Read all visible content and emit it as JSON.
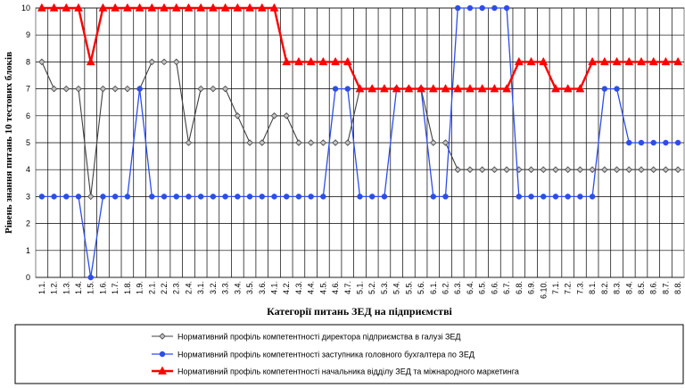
{
  "chart_data": {
    "type": "line",
    "xlabel": "Категорії питань ЗЕД на підприємстві",
    "ylabel": "Рівень знання питань 10 тестових блоків",
    "ylim": [
      0,
      10
    ],
    "yticks": [
      0,
      1,
      2,
      3,
      4,
      5,
      6,
      7,
      8,
      9,
      10
    ],
    "grid": true,
    "legend_position": "bottom",
    "categories": [
      "1.1.",
      "1.2.",
      "1.3.",
      "1.4.",
      "1.5.",
      "1.6.",
      "1.7.",
      "1.8.",
      "1.9.",
      "2.1.",
      "2.2.",
      "2.3.",
      "2.4.",
      "3.1.",
      "3.2.",
      "3.3.",
      "3.4.",
      "3.5.",
      "3.6.",
      "4.1.",
      "4.2.",
      "4.3.",
      "4.4.",
      "4.5.",
      "4.6.",
      "4.7.",
      "5.1.",
      "5.2.",
      "5.3.",
      "5.4.",
      "5.5.",
      "5.6.",
      "6.1.",
      "6.2.",
      "6.3.",
      "6.4.",
      "6.5.",
      "6.6.",
      "6.7.",
      "6.8.",
      "6.9.",
      "6.10.",
      "7.1.",
      "7.2.",
      "7.3.",
      "8.1.",
      "8.2.",
      "8.3.",
      "8.4.",
      "8.5.",
      "8.6.",
      "8.7.",
      "8.8."
    ],
    "series": [
      {
        "name": "Нормативний профіль компетентності директора підприємства в галузі ЗЕД",
        "color": "#404040",
        "marker": "diamond",
        "values": [
          8,
          7,
          7,
          7,
          3,
          7,
          7,
          7,
          7,
          8,
          8,
          8,
          5,
          7,
          7,
          7,
          6,
          5,
          5,
          6,
          6,
          5,
          5,
          5,
          5,
          5,
          7,
          7,
          7,
          7,
          7,
          7,
          5,
          5,
          4,
          4,
          4,
          4,
          4,
          4,
          4,
          4,
          4,
          4,
          4,
          4,
          4,
          4,
          4,
          4,
          4,
          4,
          4
        ]
      },
      {
        "name": "Нормативний профіль компетентності заступника головного бухгалтера по ЗЕД",
        "color": "#2e4de8",
        "marker": "circle",
        "values": [
          3,
          3,
          3,
          3,
          0,
          3,
          3,
          3,
          7,
          3,
          3,
          3,
          3,
          3,
          3,
          3,
          3,
          3,
          3,
          3,
          3,
          3,
          3,
          3,
          7,
          7,
          3,
          3,
          3,
          7,
          7,
          7,
          3,
          3,
          10,
          10,
          10,
          10,
          10,
          3,
          3,
          3,
          3,
          3,
          3,
          3,
          7,
          7,
          5,
          5,
          5,
          5,
          5
        ]
      },
      {
        "name": "Нормативний профіль компетентності начальника відділу ЗЕД та міжнародного маркетинга",
        "color": "#ff0000",
        "marker": "triangle",
        "values": [
          10,
          10,
          10,
          10,
          8,
          10,
          10,
          10,
          10,
          10,
          10,
          10,
          10,
          10,
          10,
          10,
          10,
          10,
          10,
          10,
          8,
          8,
          8,
          8,
          8,
          8,
          7,
          7,
          7,
          7,
          7,
          7,
          7,
          7,
          7,
          7,
          7,
          7,
          7,
          8,
          8,
          8,
          7,
          7,
          7,
          8,
          8,
          8,
          8,
          8,
          8,
          8,
          8
        ]
      }
    ]
  }
}
